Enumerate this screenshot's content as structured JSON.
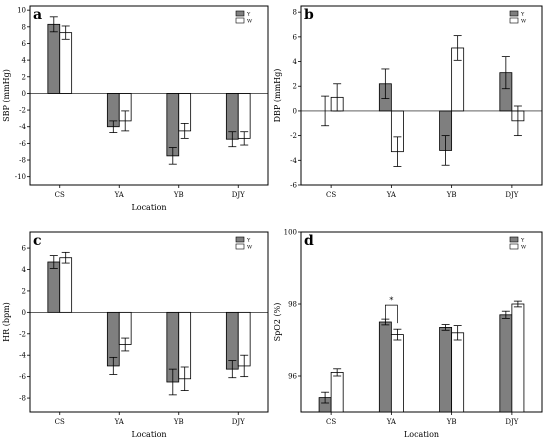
{
  "chart_data": [
    {
      "panel": "a",
      "type": "bar",
      "categories": [
        "CS",
        "YA",
        "YB",
        "DJY"
      ],
      "series": [
        {
          "name": "Y",
          "color": "#7f7f7f",
          "values": [
            8.3,
            -4.0,
            -7.5,
            -5.5
          ],
          "error": [
            0.9,
            0.7,
            1.0,
            0.9
          ]
        },
        {
          "name": "W",
          "color": "#ffffff",
          "values": [
            7.3,
            -3.3,
            -4.5,
            -5.4
          ],
          "error": [
            0.8,
            1.2,
            0.9,
            0.8
          ]
        }
      ],
      "xlabel": "Location",
      "ylabel": "SBP (mmHg)",
      "ylim": [
        -11,
        10.5
      ],
      "yticks": [
        10,
        8,
        6,
        4,
        2,
        0,
        -2,
        -4,
        -6,
        -8,
        -10
      ],
      "legend": "top-right",
      "annotations": []
    },
    {
      "panel": "b",
      "type": "bar",
      "categories": [
        "CS",
        "YA",
        "YB",
        "DJY"
      ],
      "series": [
        {
          "name": "Y",
          "color": "#7f7f7f",
          "values": [
            0.0,
            2.2,
            -3.2,
            3.1
          ],
          "error": [
            1.2,
            1.2,
            1.2,
            1.3
          ]
        },
        {
          "name": "W",
          "color": "#ffffff",
          "values": [
            1.1,
            -3.3,
            5.1,
            -0.8
          ],
          "error": [
            1.1,
            1.2,
            1.0,
            1.2
          ]
        }
      ],
      "xlabel": "",
      "ylabel": "DBP (mmHg)",
      "ylim": [
        -6,
        8.5
      ],
      "yticks": [
        8,
        6,
        4,
        2,
        0,
        -2,
        -4,
        -6
      ],
      "legend": "top-right",
      "annotations": []
    },
    {
      "panel": "c",
      "type": "bar",
      "categories": [
        "CS",
        "YA",
        "YB",
        "DJY"
      ],
      "series": [
        {
          "name": "Y",
          "color": "#7f7f7f",
          "values": [
            4.7,
            -5.0,
            -6.5,
            -5.3
          ],
          "error": [
            0.6,
            0.8,
            1.2,
            0.8
          ]
        },
        {
          "name": "W",
          "color": "#ffffff",
          "values": [
            5.1,
            -3.0,
            -6.2,
            -5.0
          ],
          "error": [
            0.5,
            0.6,
            1.1,
            1.0
          ]
        }
      ],
      "xlabel": "Location",
      "ylabel": "HR (bpm)",
      "ylim": [
        -9.3,
        7.5
      ],
      "yticks": [
        6,
        4,
        2,
        0,
        -2,
        -4,
        -6,
        -8
      ],
      "legend": "top-right",
      "annotations": []
    },
    {
      "panel": "d",
      "type": "bar",
      "categories": [
        "CS",
        "YA",
        "YB",
        "DJY"
      ],
      "series": [
        {
          "name": "Y",
          "color": "#7f7f7f",
          "values": [
            95.4,
            97.5,
            97.35,
            97.7
          ],
          "error": [
            0.15,
            0.08,
            0.08,
            0.1
          ]
        },
        {
          "name": "W",
          "color": "#ffffff",
          "values": [
            96.1,
            97.15,
            97.2,
            98.0
          ],
          "error": [
            0.1,
            0.15,
            0.2,
            0.08
          ]
        }
      ],
      "xlabel": "Location",
      "ylabel": "SpO2 (%)",
      "ylim": [
        95,
        100
      ],
      "yticks": [
        100,
        98,
        96
      ],
      "legend": "top-right",
      "annotations": [
        {
          "text": "*",
          "category": "YA"
        }
      ]
    }
  ]
}
